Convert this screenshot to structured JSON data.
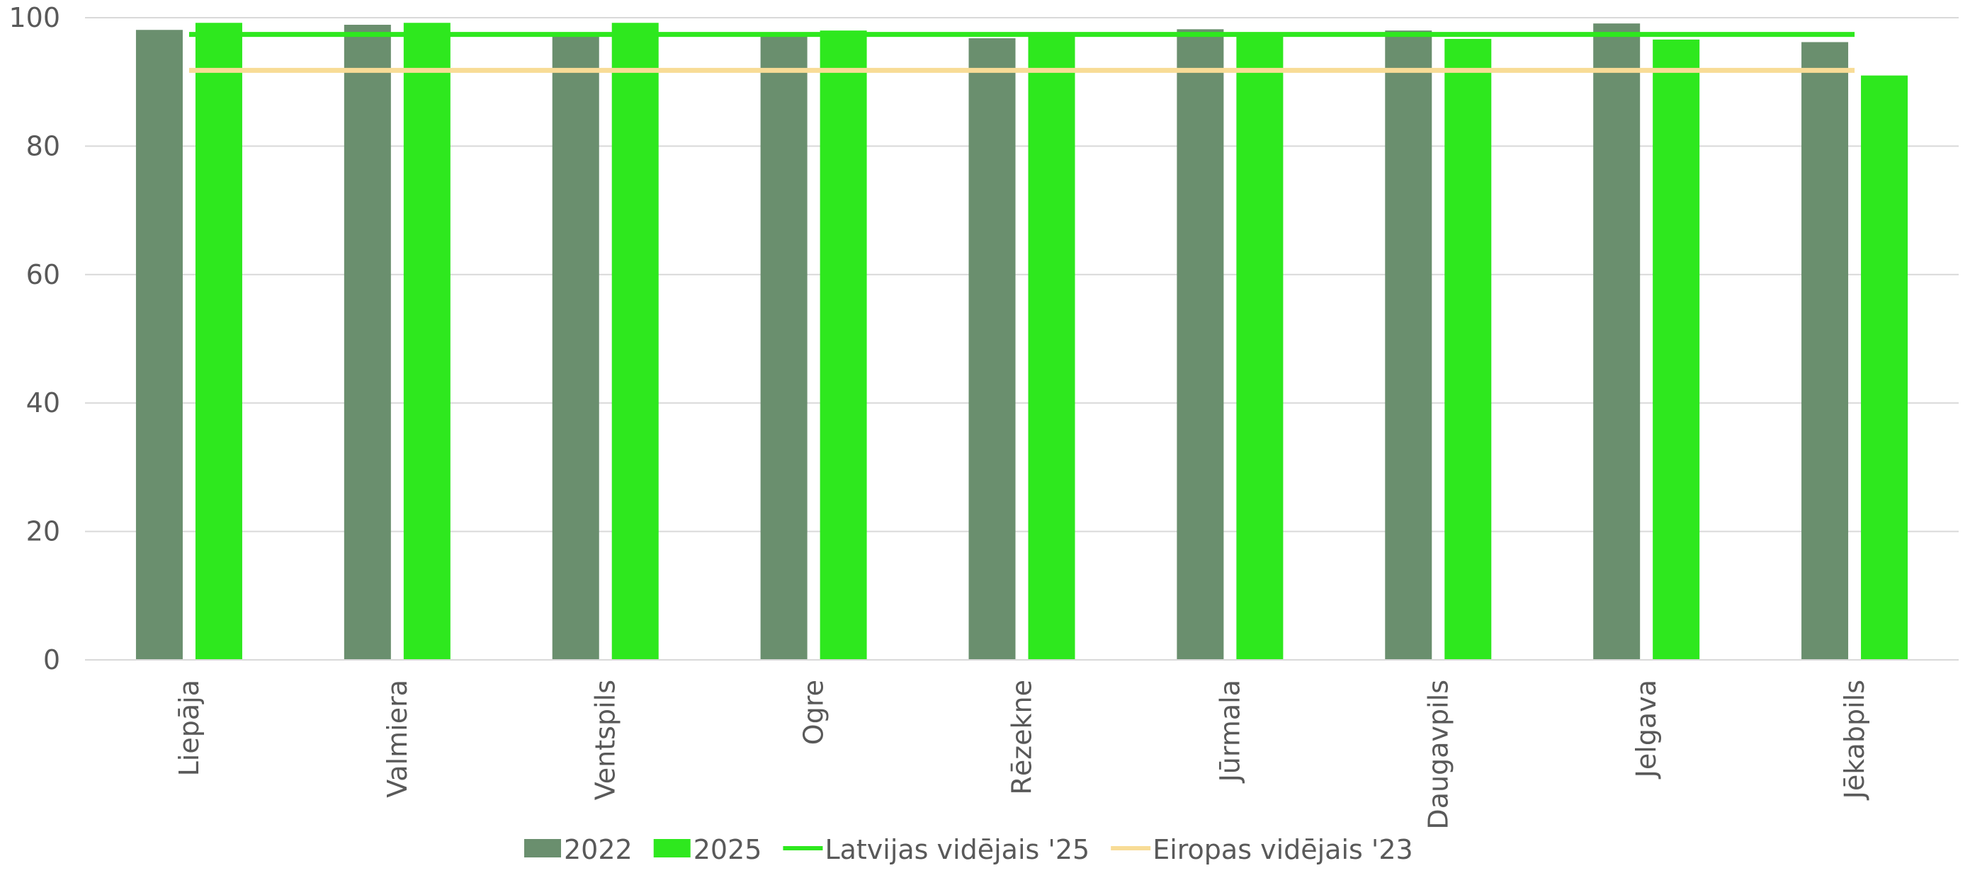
{
  "chart_data": {
    "type": "bar",
    "categories": [
      "Liepāja",
      "Valmiera",
      "Ventspils",
      "Ogre",
      "Rēzekne",
      "Jūrmala",
      "Daugavpils",
      "Jelgava",
      "Jēkabpils"
    ],
    "series": [
      {
        "name": "2022",
        "kind": "bar",
        "color": "#6a8f6e",
        "values": [
          98.1,
          98.9,
          97.4,
          97.2,
          96.8,
          98.2,
          98.0,
          99.1,
          96.2
        ]
      },
      {
        "name": "2025",
        "kind": "bar",
        "color": "#2ee81e",
        "values": [
          99.2,
          99.2,
          99.2,
          98.0,
          97.6,
          97.5,
          96.7,
          96.6,
          91.0
        ]
      },
      {
        "name": "Latvijas vidējais '25",
        "kind": "line",
        "color": "#2ee81e",
        "value": 97.4
      },
      {
        "name": "Eiropas vidējais '23",
        "kind": "line",
        "color": "#f8dc96",
        "value": 91.8
      }
    ],
    "ylim": [
      0,
      100
    ],
    "yticks": [
      0,
      20,
      40,
      60,
      80,
      100
    ],
    "grid": true,
    "legend_position": "bottom",
    "title": "",
    "xlabel": "",
    "ylabel": ""
  }
}
